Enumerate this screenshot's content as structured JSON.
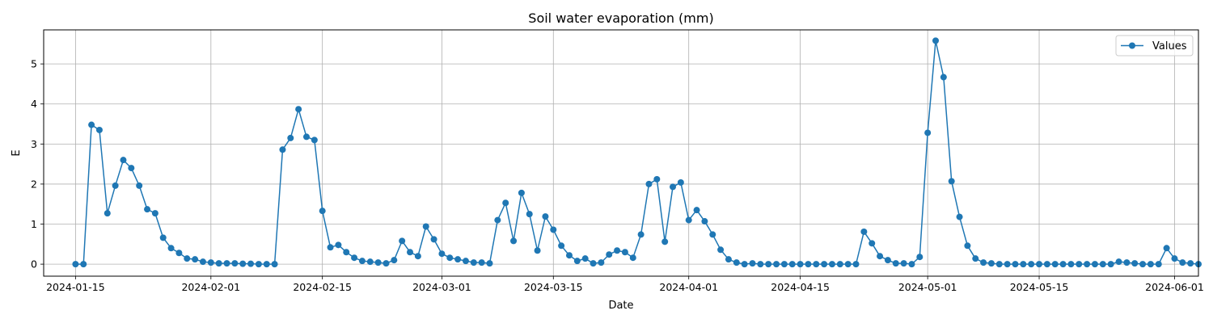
{
  "chart_data": {
    "type": "line",
    "title": "Soil water evaporation (mm)",
    "xlabel": "Date",
    "ylabel": "E",
    "x_ticks": [
      "2024-01-15",
      "2024-02-01",
      "2024-02-15",
      "2024-03-01",
      "2024-03-15",
      "2024-04-01",
      "2024-04-15",
      "2024-05-01",
      "2024-05-15",
      "2024-06-01"
    ],
    "y_ticks": [
      0,
      1,
      2,
      3,
      4,
      5
    ],
    "xlim": [
      "2024-01-11",
      "2024-06-04"
    ],
    "ylim": [
      -0.3,
      5.85
    ],
    "grid": true,
    "legend_position": "top-right",
    "series": [
      {
        "name": "Values",
        "color": "#1f77b4",
        "marker": "circle",
        "x_start": "2024-01-15",
        "x_step_days": 1,
        "values": [
          0,
          0,
          3.48,
          3.35,
          1.27,
          1.96,
          2.6,
          2.4,
          1.96,
          1.37,
          1.27,
          0.66,
          0.4,
          0.28,
          0.14,
          0.12,
          0.06,
          0.04,
          0.02,
          0.02,
          0.02,
          0.01,
          0.01,
          0,
          0,
          0,
          2.86,
          3.15,
          3.87,
          3.18,
          3.1,
          1.33,
          0.42,
          0.48,
          0.3,
          0.16,
          0.08,
          0.06,
          0.04,
          0.02,
          0.1,
          0.58,
          0.3,
          0.2,
          0.94,
          0.62,
          0.26,
          0.16,
          0.12,
          0.08,
          0.04,
          0.04,
          0.02,
          1.1,
          1.53,
          0.58,
          1.78,
          1.25,
          0.34,
          1.19,
          0.86,
          0.46,
          0.22,
          0.08,
          0.14,
          0.02,
          0.04,
          0.24,
          0.34,
          0.3,
          0.16,
          0.74,
          2.0,
          2.12,
          0.56,
          1.93,
          2.04,
          1.1,
          1.35,
          1.07,
          0.74,
          0.36,
          0.12,
          0.04,
          0,
          0.02,
          0,
          0,
          0,
          0,
          0,
          0,
          0,
          0,
          0,
          0,
          0,
          0,
          0,
          0.81,
          0.52,
          0.2,
          0.1,
          0.02,
          0.02,
          0,
          0.18,
          3.28,
          5.58,
          4.67,
          2.07,
          1.18,
          0.46,
          0.14,
          0.04,
          0.02,
          0,
          0,
          0,
          0,
          0,
          0,
          0,
          0,
          0,
          0,
          0,
          0,
          0,
          0,
          0,
          0.06,
          0.04,
          0.02,
          0,
          0,
          0,
          0.4,
          0.14,
          0.04,
          0.02,
          0
        ]
      }
    ]
  }
}
